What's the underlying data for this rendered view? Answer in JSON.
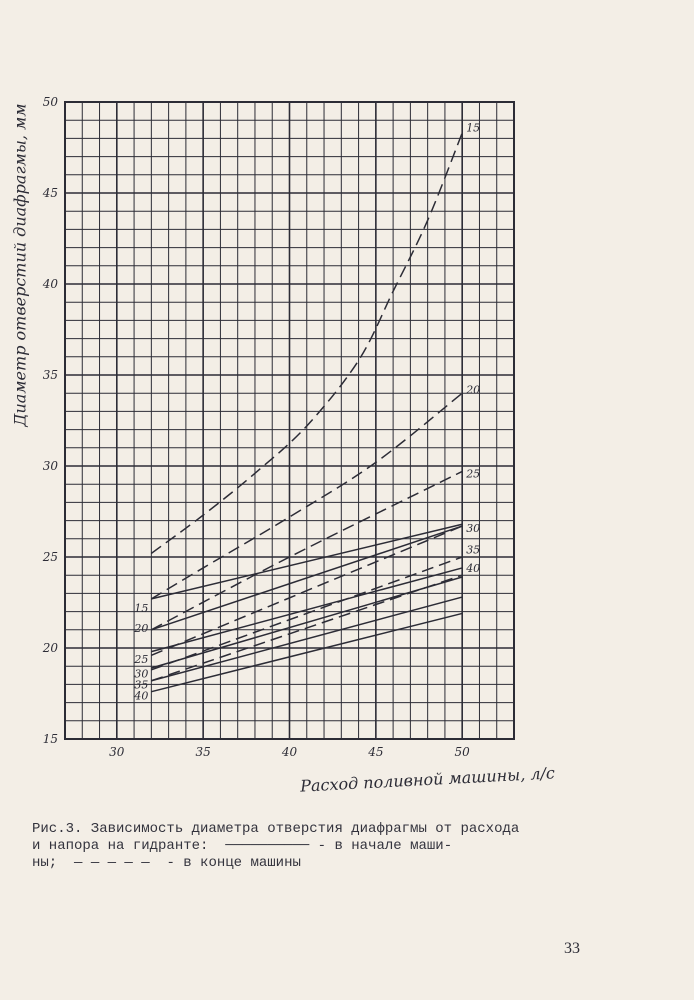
{
  "chart_data": {
    "type": "line",
    "xlabel": "Расход поливной машины, л/с",
    "ylabel": "Диаметр отверстий диафрагмы, мм",
    "xlim": [
      27,
      53
    ],
    "ylim": [
      15,
      50
    ],
    "xticks": [
      30,
      35,
      40,
      45,
      50
    ],
    "yticks": [
      15,
      20,
      25,
      30,
      35,
      40,
      45,
      50
    ],
    "grid": true,
    "series": [
      {
        "name": "15",
        "style": "solid",
        "x": [
          32,
          50
        ],
        "y": [
          22.7,
          26.8
        ]
      },
      {
        "name": "20",
        "style": "solid",
        "x": [
          32,
          50
        ],
        "y": [
          21.0,
          26.7
        ]
      },
      {
        "name": "25",
        "style": "solid",
        "x": [
          32,
          50
        ],
        "y": [
          19.8,
          24.4
        ]
      },
      {
        "name": "30",
        "style": "solid",
        "x": [
          32,
          50
        ],
        "y": [
          18.9,
          23.9
        ]
      },
      {
        "name": "35",
        "style": "solid",
        "x": [
          32,
          50
        ],
        "y": [
          18.2,
          22.8
        ]
      },
      {
        "name": "40",
        "style": "solid",
        "x": [
          32,
          50
        ],
        "y": [
          17.6,
          21.9
        ]
      },
      {
        "name": "15",
        "style": "dashed",
        "x": [
          32,
          35,
          38,
          41,
          44,
          46,
          48,
          50
        ],
        "y": [
          25.2,
          27.3,
          29.6,
          32.2,
          35.8,
          39.6,
          43.5,
          48.3
        ]
      },
      {
        "name": "20",
        "style": "dashed",
        "x": [
          32,
          35,
          40,
          45,
          50
        ],
        "y": [
          22.7,
          24.4,
          27.2,
          30.2,
          34.0
        ]
      },
      {
        "name": "25",
        "style": "dashed",
        "x": [
          32,
          40,
          50
        ],
        "y": [
          21.0,
          25.0,
          29.7
        ]
      },
      {
        "name": "30",
        "style": "dashed",
        "x": [
          32,
          50
        ],
        "y": [
          19.6,
          26.7
        ]
      },
      {
        "name": "35",
        "style": "dashed",
        "x": [
          32,
          50
        ],
        "y": [
          18.8,
          25.0
        ]
      },
      {
        "name": "40",
        "style": "dashed",
        "x": [
          32,
          50
        ],
        "y": [
          18.2,
          24.0
        ]
      }
    ],
    "left_labels": [
      "15",
      "20",
      "25",
      "30",
      "35",
      "40"
    ],
    "left_label_y": [
      22.2,
      21.1,
      19.4,
      18.6,
      18.0,
      17.4
    ],
    "right_labels": [
      "15",
      "20",
      "25",
      "30",
      "35",
      "40"
    ],
    "right_label_y": [
      48.6,
      34.2,
      29.6,
      26.6,
      25.4,
      24.4
    ]
  },
  "caption": {
    "line1": "Рис.3. Зависимость диаметра отверстия диафрагмы от расхода",
    "line2": "и напора на гидранте:",
    "line2_end": " - в начале маши-",
    "line3": "ны;",
    "line3_end": " - в конце машины"
  },
  "page_number": "33",
  "colors": {
    "paper": "#f3eee6",
    "ink": "#2c2c36"
  }
}
